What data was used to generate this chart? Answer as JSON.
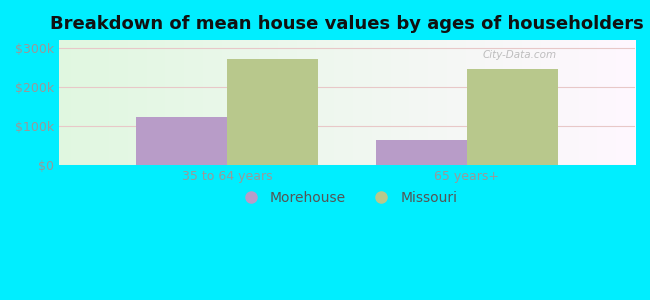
{
  "title": "Breakdown of mean house values by ages of householders",
  "categories": [
    "35 to 64 years",
    "65 years+"
  ],
  "morehouse_values": [
    122000,
    65000
  ],
  "missouri_values": [
    272000,
    245000
  ],
  "morehouse_color": "#b89cc8",
  "missouri_color": "#b8c88c",
  "background_color": "#00eeff",
  "yticks": [
    0,
    100000,
    200000,
    300000
  ],
  "ylabels": [
    "$0",
    "$100k",
    "$200k",
    "$300k"
  ],
  "ylim": [
    0,
    320000
  ],
  "bar_width": 0.38,
  "title_fontsize": 13,
  "tick_fontsize": 9,
  "legend_fontsize": 10,
  "grid_color": "#e8c8c8",
  "watermark_text": "City-Data.com"
}
